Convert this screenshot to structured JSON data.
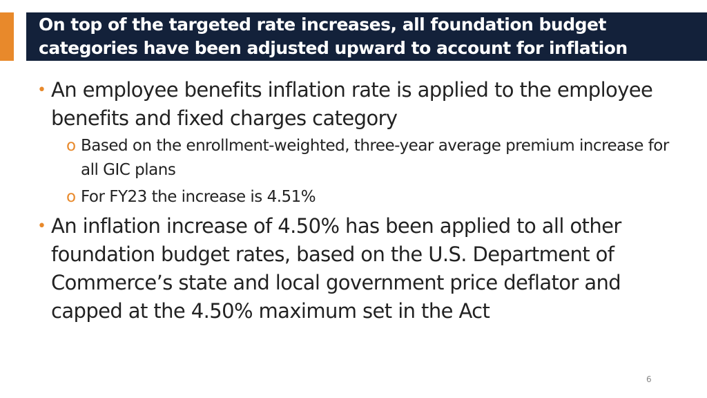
{
  "header": {
    "title": "On top of the targeted rate increases, all foundation budget categories have been adjusted upward to account for inflation"
  },
  "bullets": [
    {
      "text": "An employee benefits inflation rate is applied to the employee benefits and fixed charges category",
      "subbullets": [
        "Based on the enrollment-weighted, three-year average premium increase for all GIC plans",
        "For FY23 the increase is 4.51%"
      ]
    },
    {
      "text": "An inflation increase of 4.50% has been applied to all other foundation budget rates, based on the U.S. Department of Commerce’s state and local government price deflator and capped at the 4.50% maximum set in the Act",
      "subbullets": []
    }
  ],
  "footer": {
    "page_number": "6"
  }
}
